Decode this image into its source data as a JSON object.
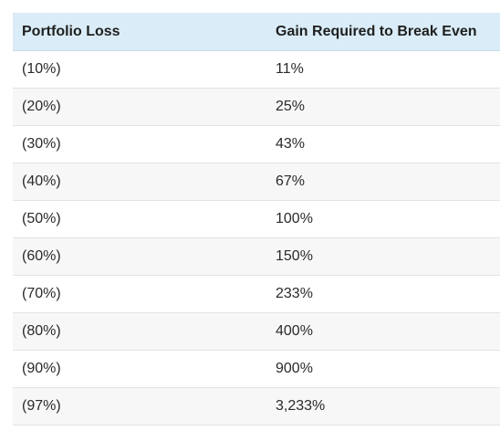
{
  "table": {
    "headers": [
      "Portfolio Loss",
      "Gain Required to Break Even"
    ],
    "rows": [
      [
        "(10%)",
        "11%"
      ],
      [
        "(20%)",
        "25%"
      ],
      [
        "(30%)",
        "43%"
      ],
      [
        "(40%)",
        "67%"
      ],
      [
        "(50%)",
        "100%"
      ],
      [
        "(60%)",
        "150%"
      ],
      [
        "(70%)",
        "233%"
      ],
      [
        "(80%)",
        "400%"
      ],
      [
        "(90%)",
        "900%"
      ],
      [
        "(97%)",
        "3,233%"
      ]
    ]
  },
  "colors": {
    "header_background": "#d9ecf7",
    "stripe_background": "#f7f7f7",
    "row_border": "#e3e3e3"
  }
}
